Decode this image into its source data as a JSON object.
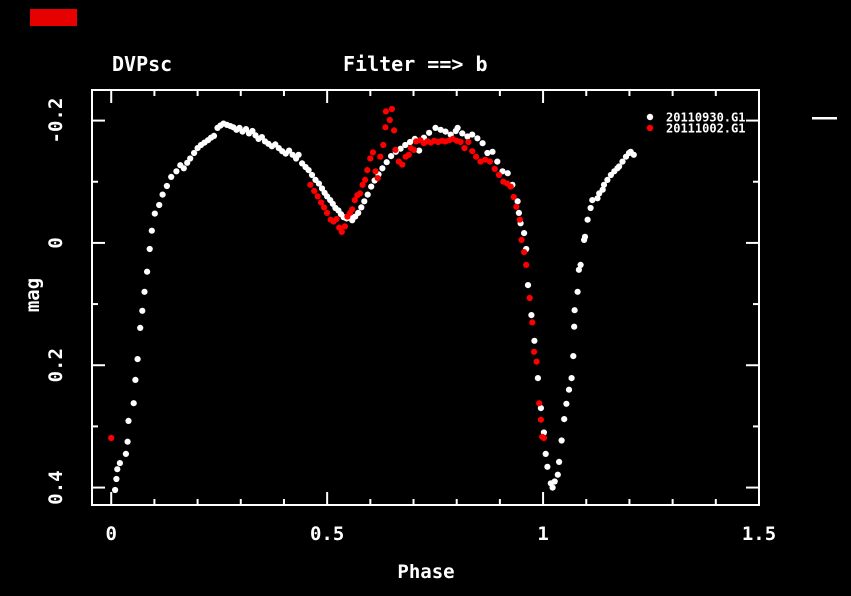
{
  "window": {
    "background_color": "#000000",
    "annotation_box_color": "#e60000"
  },
  "chart_data": {
    "type": "scatter",
    "title_left": "DVPsc",
    "title_right": "Filter ==> b",
    "xlabel": "Phase",
    "ylabel": "mag",
    "grid": false,
    "legend_position": "top-right-inside",
    "x_ticks": [
      0,
      0.5,
      1,
      1.5
    ],
    "x_tick_labels": [
      "0",
      "0.5",
      "1",
      "1.5"
    ],
    "x_minor_ticks": [
      0.1,
      0.2,
      0.3,
      0.4,
      0.6,
      0.7,
      0.8,
      0.9,
      1.1,
      1.2,
      1.3,
      1.4
    ],
    "y_ticks": [
      -0.2,
      0,
      0.2,
      0.4
    ],
    "y_tick_labels": [
      "-0.2",
      "0",
      "0.2",
      "0.4"
    ],
    "y_minor_ticks": [
      -0.1,
      0.1,
      0.3
    ],
    "xlim": [
      -0.0445,
      1.5
    ],
    "ylim": [
      0.4285,
      -0.25
    ],
    "y_axis_inverted": true,
    "marker": "filled-circle",
    "series": [
      {
        "name": "20110930.G1",
        "color": "#ffffff",
        "points": [
          [
            0.009,
            0.404
          ],
          [
            0.012,
            0.386
          ],
          [
            0.014,
            0.37
          ],
          [
            0.02,
            0.36
          ],
          [
            0.034,
            0.345
          ],
          [
            0.038,
            0.325
          ],
          [
            0.04,
            0.291
          ],
          [
            0.052,
            0.262
          ],
          [
            0.056,
            0.224
          ],
          [
            0.061,
            0.19
          ],
          [
            0.067,
            0.139
          ],
          [
            0.072,
            0.111
          ],
          [
            0.077,
            0.08
          ],
          [
            0.083,
            0.047
          ],
          [
            0.089,
            0.01
          ],
          [
            0.094,
            -0.02
          ],
          [
            0.101,
            -0.048
          ],
          [
            0.111,
            -0.062
          ],
          [
            0.119,
            -0.079
          ],
          [
            0.129,
            -0.093
          ],
          [
            0.139,
            -0.108
          ],
          [
            0.151,
            -0.117
          ],
          [
            0.16,
            -0.127
          ],
          [
            0.168,
            -0.122
          ],
          [
            0.176,
            -0.131
          ],
          [
            0.183,
            -0.138
          ],
          [
            0.192,
            -0.147
          ],
          [
            0.2,
            -0.155
          ],
          [
            0.208,
            -0.16
          ],
          [
            0.216,
            -0.164
          ],
          [
            0.224,
            -0.168
          ],
          [
            0.231,
            -0.172
          ],
          [
            0.238,
            -0.175
          ],
          [
            0.246,
            -0.188
          ],
          [
            0.253,
            -0.192
          ],
          [
            0.26,
            -0.195
          ],
          [
            0.268,
            -0.193
          ],
          [
            0.276,
            -0.191
          ],
          [
            0.283,
            -0.189
          ],
          [
            0.29,
            -0.185
          ],
          [
            0.297,
            -0.188
          ],
          [
            0.304,
            -0.182
          ],
          [
            0.312,
            -0.186
          ],
          [
            0.319,
            -0.179
          ],
          [
            0.327,
            -0.183
          ],
          [
            0.334,
            -0.176
          ],
          [
            0.341,
            -0.17
          ],
          [
            0.349,
            -0.173
          ],
          [
            0.356,
            -0.166
          ],
          [
            0.364,
            -0.162
          ],
          [
            0.372,
            -0.158
          ],
          [
            0.38,
            -0.161
          ],
          [
            0.388,
            -0.155
          ],
          [
            0.396,
            -0.15
          ],
          [
            0.404,
            -0.146
          ],
          [
            0.412,
            -0.151
          ],
          [
            0.42,
            -0.144
          ],
          [
            0.428,
            -0.138
          ],
          [
            0.434,
            -0.144
          ],
          [
            0.442,
            -0.13
          ],
          [
            0.45,
            -0.124
          ],
          [
            0.457,
            -0.119
          ],
          [
            0.465,
            -0.111
          ],
          [
            0.473,
            -0.103
          ],
          [
            0.481,
            -0.097
          ],
          [
            0.488,
            -0.089
          ],
          [
            0.494,
            -0.082
          ],
          [
            0.5,
            -0.076
          ],
          [
            0.507,
            -0.07
          ],
          [
            0.513,
            -0.064
          ],
          [
            0.519,
            -0.057
          ],
          [
            0.526,
            -0.053
          ],
          [
            0.532,
            -0.047
          ],
          [
            0.538,
            -0.042
          ],
          [
            0.545,
            -0.04
          ],
          [
            0.552,
            -0.044
          ],
          [
            0.558,
            -0.037
          ],
          [
            0.565,
            -0.043
          ],
          [
            0.572,
            -0.049
          ],
          [
            0.579,
            -0.058
          ],
          [
            0.586,
            -0.068
          ],
          [
            0.594,
            -0.079
          ],
          [
            0.602,
            -0.092
          ],
          [
            0.61,
            -0.102
          ],
          [
            0.619,
            -0.112
          ],
          [
            0.628,
            -0.122
          ],
          [
            0.638,
            -0.132
          ],
          [
            0.648,
            -0.142
          ],
          [
            0.659,
            -0.149
          ],
          [
            0.67,
            -0.154
          ],
          [
            0.681,
            -0.16
          ],
          [
            0.692,
            -0.165
          ],
          [
            0.703,
            -0.17
          ],
          [
            0.713,
            -0.151
          ],
          [
            0.724,
            -0.172
          ],
          [
            0.736,
            -0.18
          ],
          [
            0.751,
            -0.188
          ],
          [
            0.763,
            -0.185
          ],
          [
            0.774,
            -0.182
          ],
          [
            0.786,
            -0.177
          ],
          [
            0.798,
            -0.183
          ],
          [
            0.802,
            -0.188
          ],
          [
            0.813,
            -0.179
          ],
          [
            0.825,
            -0.174
          ],
          [
            0.836,
            -0.177
          ],
          [
            0.848,
            -0.171
          ],
          [
            0.86,
            -0.163
          ],
          [
            0.871,
            -0.147
          ],
          [
            0.883,
            -0.149
          ],
          [
            0.894,
            -0.133
          ],
          [
            0.906,
            -0.117
          ],
          [
            0.918,
            -0.114
          ],
          [
            0.929,
            -0.095
          ],
          [
            0.941,
            -0.068
          ],
          [
            0.944,
            -0.049
          ],
          [
            0.948,
            -0.032
          ],
          [
            0.956,
            -0.016
          ],
          [
            0.961,
            0.01
          ],
          [
            0.965,
            0.069
          ],
          [
            0.973,
            0.118
          ],
          [
            0.98,
            0.16
          ],
          [
            0.988,
            0.221
          ],
          [
            0.995,
            0.27
          ],
          [
            1.002,
            0.31
          ],
          [
            1.006,
            0.345
          ],
          [
            1.01,
            0.366
          ],
          [
            1.018,
            0.393
          ],
          [
            1.022,
            0.4
          ],
          [
            1.027,
            0.39
          ],
          [
            1.034,
            0.379
          ],
          [
            1.037,
            0.358
          ],
          [
            1.043,
            0.323
          ],
          [
            1.049,
            0.288
          ],
          [
            1.054,
            0.263
          ],
          [
            1.06,
            0.24
          ],
          [
            1.066,
            0.221
          ],
          [
            1.07,
            0.185
          ],
          [
            1.072,
            0.137
          ],
          [
            1.073,
            0.11
          ],
          [
            1.08,
            0.08
          ],
          [
            1.083,
            0.044
          ],
          [
            1.087,
            0.036
          ],
          [
            1.095,
            -0.005
          ],
          [
            1.097,
            -0.01
          ],
          [
            1.103,
            -0.038
          ],
          [
            1.11,
            -0.057
          ],
          [
            1.114,
            -0.07
          ],
          [
            1.126,
            -0.073
          ],
          [
            1.13,
            -0.081
          ],
          [
            1.138,
            -0.087
          ],
          [
            1.141,
            -0.095
          ],
          [
            1.149,
            -0.103
          ],
          [
            1.157,
            -0.111
          ],
          [
            1.165,
            -0.117
          ],
          [
            1.172,
            -0.122
          ],
          [
            1.176,
            -0.125
          ],
          [
            1.184,
            -0.133
          ],
          [
            1.192,
            -0.141
          ],
          [
            1.199,
            -0.147
          ],
          [
            1.203,
            -0.149
          ],
          [
            1.21,
            -0.144
          ]
        ]
      },
      {
        "name": "20111002.G1",
        "color": "#ff0000",
        "points": [
          [
            0.0,
            0.319
          ],
          [
            0.461,
            -0.095
          ],
          [
            0.47,
            -0.085
          ],
          [
            0.478,
            -0.076
          ],
          [
            0.486,
            -0.066
          ],
          [
            0.493,
            -0.058
          ],
          [
            0.5,
            -0.049
          ],
          [
            0.508,
            -0.038
          ],
          [
            0.515,
            -0.035
          ],
          [
            0.522,
            -0.039
          ],
          [
            0.528,
            -0.025
          ],
          [
            0.534,
            -0.018
          ],
          [
            0.541,
            -0.027
          ],
          [
            0.547,
            -0.043
          ],
          [
            0.553,
            -0.049
          ],
          [
            0.558,
            -0.055
          ],
          [
            0.564,
            -0.07
          ],
          [
            0.57,
            -0.078
          ],
          [
            0.576,
            -0.081
          ],
          [
            0.582,
            -0.095
          ],
          [
            0.588,
            -0.103
          ],
          [
            0.593,
            -0.119
          ],
          [
            0.6,
            -0.138
          ],
          [
            0.606,
            -0.148
          ],
          [
            0.612,
            -0.117
          ],
          [
            0.617,
            -0.106
          ],
          [
            0.623,
            -0.141
          ],
          [
            0.63,
            -0.16
          ],
          [
            0.635,
            -0.189
          ],
          [
            0.636,
            -0.215
          ],
          [
            0.645,
            -0.201
          ],
          [
            0.65,
            -0.219
          ],
          [
            0.655,
            -0.184
          ],
          [
            0.658,
            -0.152
          ],
          [
            0.666,
            -0.133
          ],
          [
            0.674,
            -0.128
          ],
          [
            0.682,
            -0.141
          ],
          [
            0.689,
            -0.144
          ],
          [
            0.694,
            -0.155
          ],
          [
            0.701,
            -0.152
          ],
          [
            0.706,
            -0.166
          ],
          [
            0.716,
            -0.168
          ],
          [
            0.724,
            -0.163
          ],
          [
            0.732,
            -0.166
          ],
          [
            0.74,
            -0.164
          ],
          [
            0.748,
            -0.167
          ],
          [
            0.757,
            -0.165
          ],
          [
            0.766,
            -0.167
          ],
          [
            0.774,
            -0.166
          ],
          [
            0.783,
            -0.168
          ],
          [
            0.791,
            -0.17
          ],
          [
            0.8,
            -0.167
          ],
          [
            0.809,
            -0.165
          ],
          [
            0.818,
            -0.155
          ],
          [
            0.827,
            -0.165
          ],
          [
            0.836,
            -0.15
          ],
          [
            0.845,
            -0.141
          ],
          [
            0.855,
            -0.133
          ],
          [
            0.866,
            -0.136
          ],
          [
            0.877,
            -0.133
          ],
          [
            0.888,
            -0.121
          ],
          [
            0.898,
            -0.111
          ],
          [
            0.908,
            -0.1
          ],
          [
            0.917,
            -0.097
          ],
          [
            0.925,
            -0.092
          ],
          [
            0.932,
            -0.075
          ],
          [
            0.938,
            -0.059
          ],
          [
            0.946,
            -0.038
          ],
          [
            0.95,
            -0.005
          ],
          [
            0.956,
            0.015
          ],
          [
            0.961,
            0.036
          ],
          [
            0.969,
            0.09
          ],
          [
            0.975,
            0.13
          ],
          [
            0.979,
            0.178
          ],
          [
            0.985,
            0.194
          ],
          [
            0.991,
            0.262
          ],
          [
            0.995,
            0.289
          ],
          [
            0.998,
            0.317
          ],
          [
            1.002,
            0.319
          ]
        ]
      }
    ]
  },
  "legend": {
    "entries": [
      {
        "label": "20110930.G1",
        "color": "#ffffff"
      },
      {
        "label": "20111002.G1",
        "color": "#ff0000"
      }
    ]
  }
}
